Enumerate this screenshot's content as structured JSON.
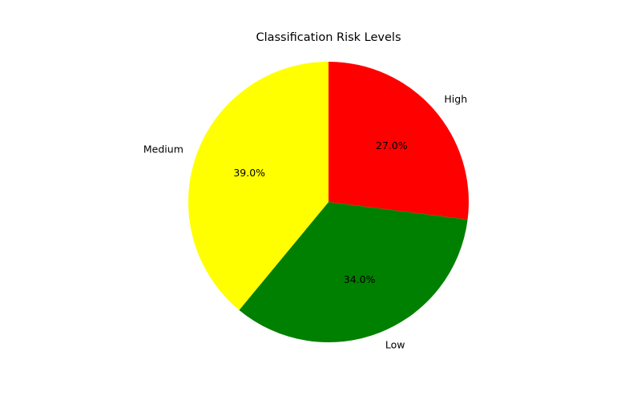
{
  "chart_data": {
    "type": "pie",
    "title": "Classification Risk Levels",
    "categories": [
      "High",
      "Low",
      "Medium"
    ],
    "values": [
      27.0,
      34.0,
      39.0
    ],
    "percent_labels": [
      "27.0%",
      "34.0%",
      "39.0%"
    ],
    "colors": [
      "#ff0000",
      "#008000",
      "#ffff00"
    ],
    "start_angle_deg": 90,
    "direction": "clockwise",
    "legend": "none"
  }
}
